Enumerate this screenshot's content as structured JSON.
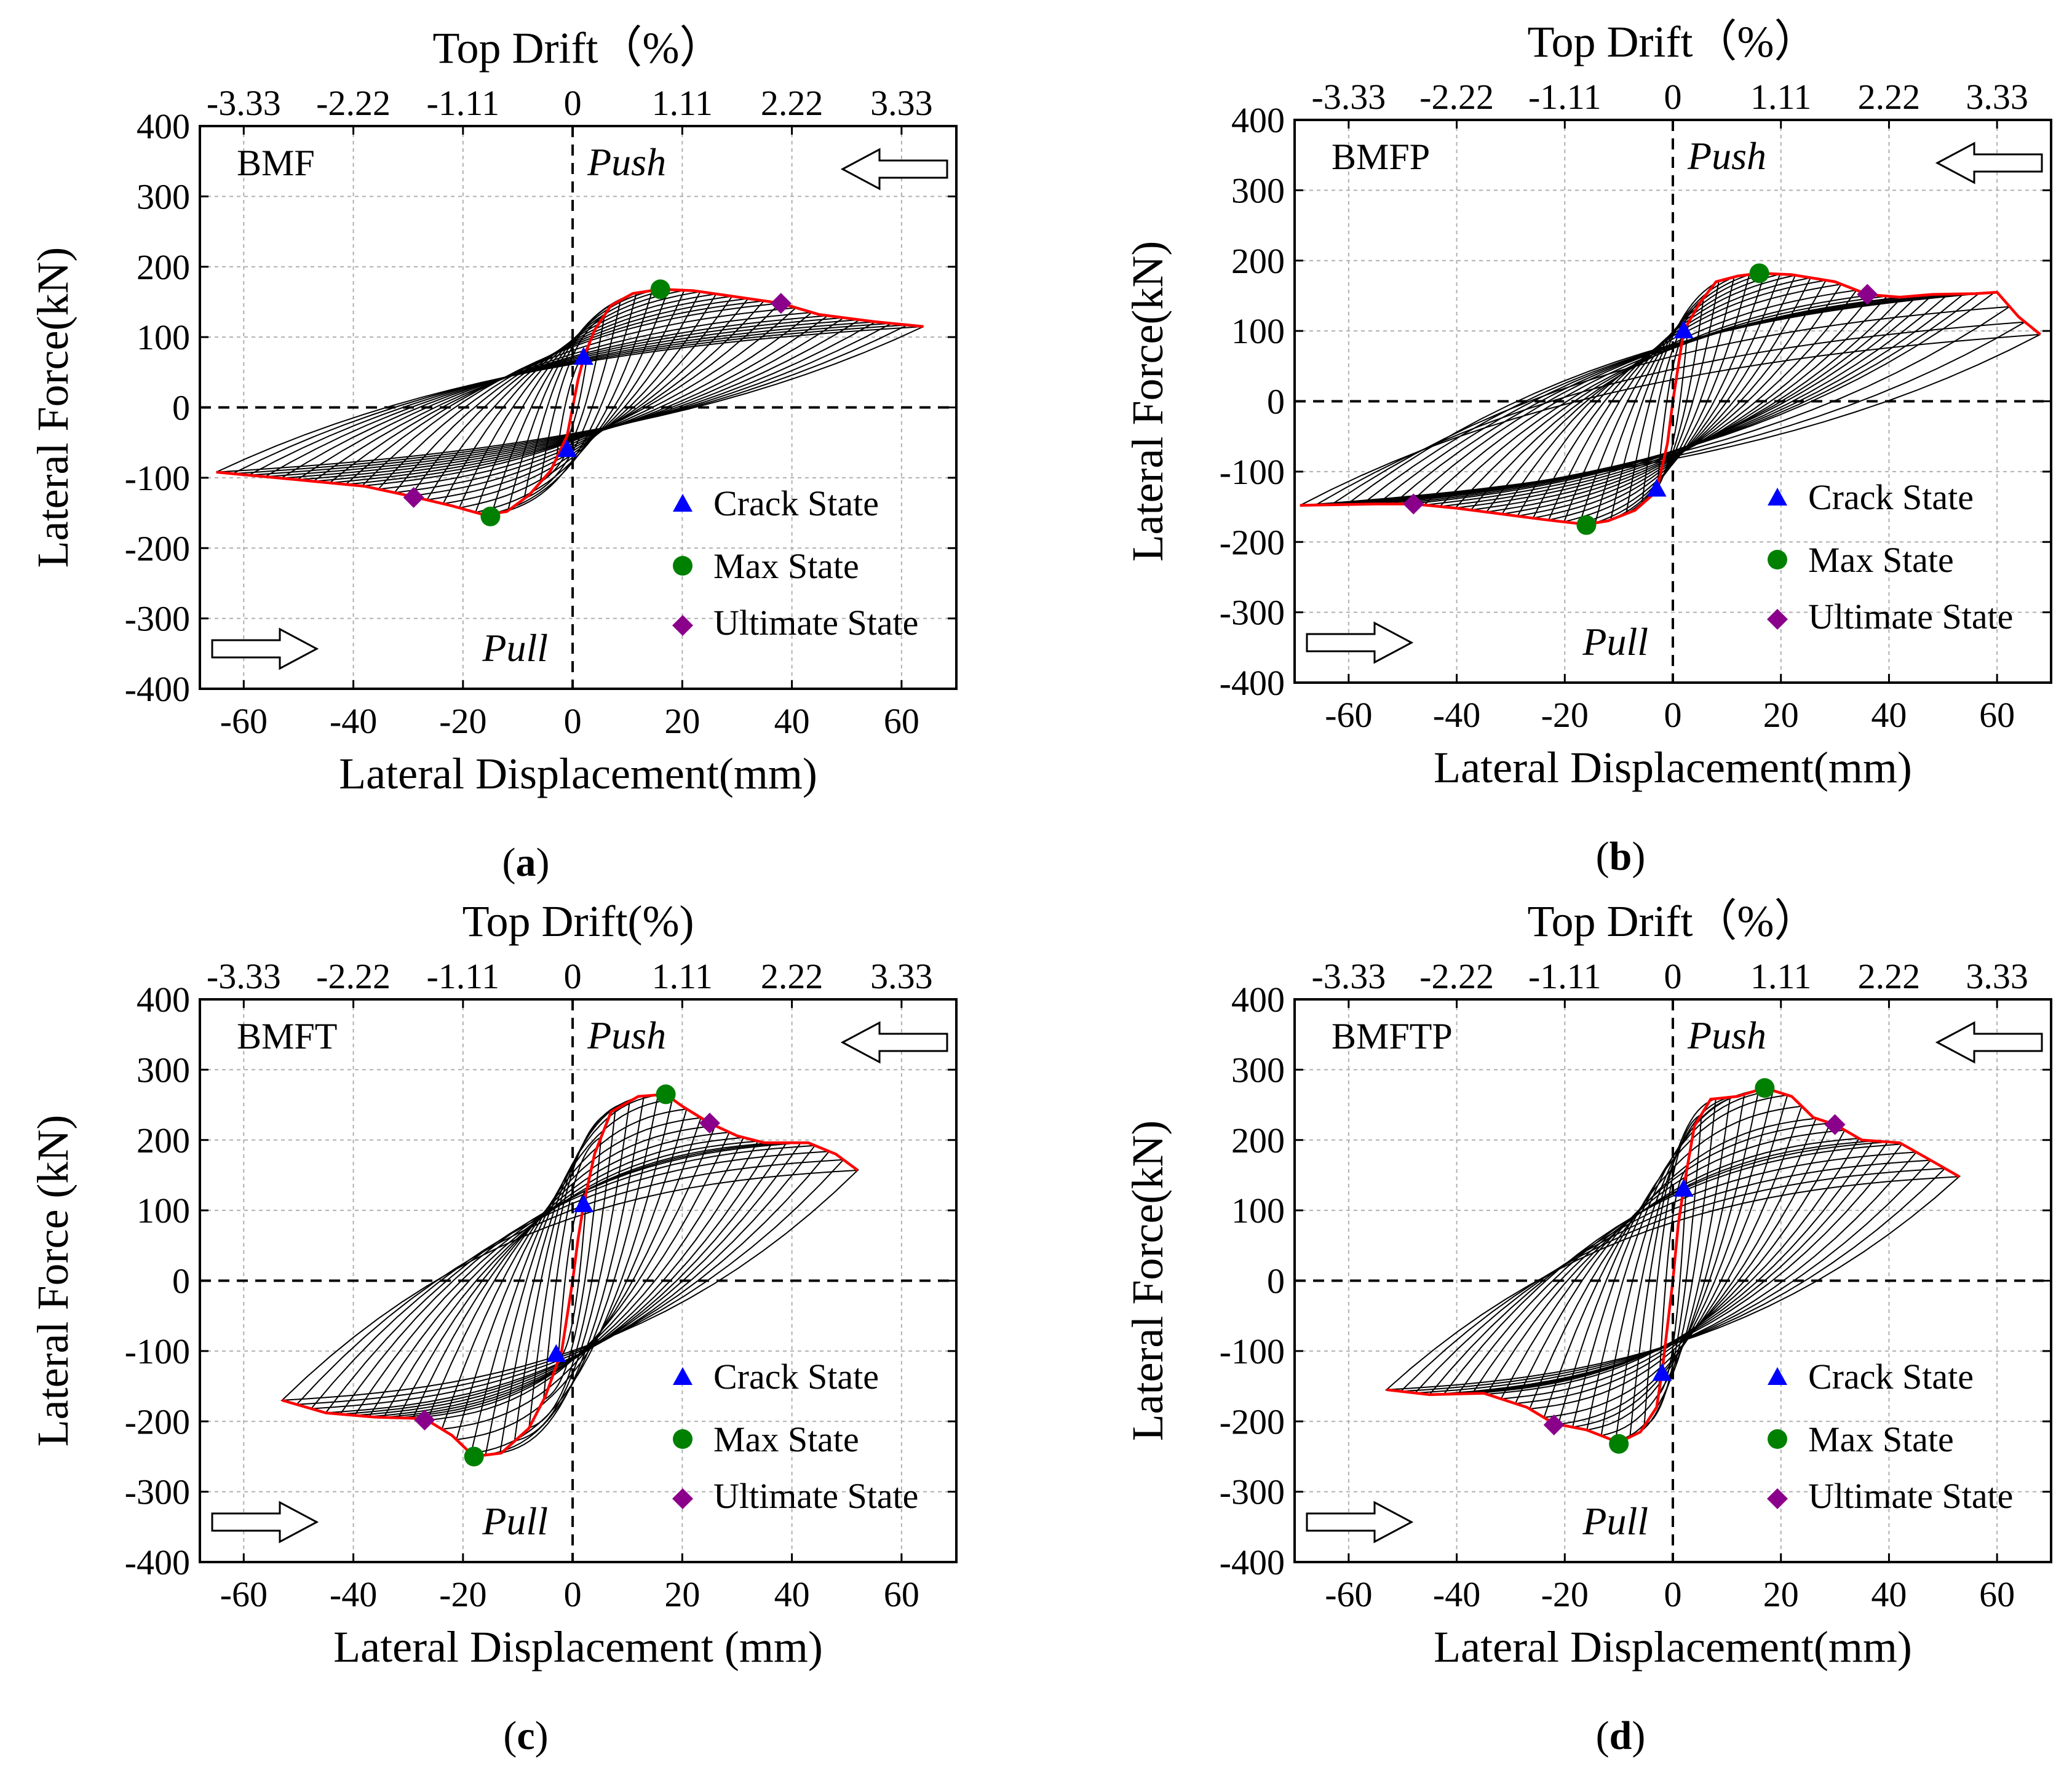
{
  "figure": {
    "captions": [
      "(a)",
      "(b)",
      "(c)",
      "(d)"
    ],
    "caption_letters": [
      "a",
      "b",
      "c",
      "d"
    ],
    "colors": {
      "envelope": "#ff0000",
      "loops": "#000000",
      "crack": "#0000ff",
      "max": "#008000",
      "ultimate": "#8b008b",
      "grid": "#b0b0b0"
    }
  },
  "chart_data": [
    {
      "type": "line",
      "specimen": "BMF",
      "title": "",
      "xlabel": "Lateral Displacement(mm)",
      "ylabel": "Lateral Force(kN)",
      "x2label": "Top Drift（%）",
      "xticks": [
        "-60",
        "-40",
        "-20",
        "0",
        "20",
        "40",
        "60"
      ],
      "yticks": [
        "-400",
        "-300",
        "-200",
        "-100",
        "0",
        "100",
        "200",
        "300",
        "400"
      ],
      "x2ticks": [
        "-3.33",
        "-2.22",
        "-1.11",
        "0",
        "1.11",
        "2.22",
        "3.33"
      ],
      "xlim": [
        -68,
        70
      ],
      "ylim": [
        -400,
        400
      ],
      "grid": true,
      "push_label": "Push",
      "pull_label": "Pull",
      "legend": [
        "Crack State",
        "Max State",
        "Ultimate State"
      ],
      "legend_position": "bottom-right",
      "envelope": [
        [
          -65,
          -92
        ],
        [
          -50,
          -103
        ],
        [
          -38,
          -112
        ],
        [
          -29,
          -127
        ],
        [
          -22,
          -140
        ],
        [
          -16,
          -153
        ],
        [
          -12,
          -148
        ],
        [
          -8,
          -125
        ],
        [
          -4,
          -90
        ],
        [
          -1,
          -40
        ],
        [
          0,
          0
        ],
        [
          1,
          40
        ],
        [
          2,
          70
        ],
        [
          4,
          110
        ],
        [
          7,
          145
        ],
        [
          11,
          162
        ],
        [
          16,
          168
        ],
        [
          22,
          166
        ],
        [
          30,
          157
        ],
        [
          38,
          148
        ],
        [
          45,
          132
        ],
        [
          55,
          122
        ],
        [
          64,
          115
        ]
      ],
      "crack": [
        [
          2,
          71
        ],
        [
          -1,
          -60
        ]
      ],
      "max": [
        [
          16,
          168
        ],
        [
          -15,
          -155
        ]
      ],
      "ultimate": [
        [
          38,
          148
        ],
        [
          -29,
          -128
        ]
      ],
      "loop_count": 22,
      "residual_force": 20
    },
    {
      "type": "line",
      "specimen": "BMFP",
      "title": "",
      "xlabel": "Lateral Displacement(mm)",
      "ylabel": "Lateral Force(kN)",
      "x2label": "Top Drift（%）",
      "xticks": [
        "-60",
        "-40",
        "-20",
        "0",
        "20",
        "40",
        "60"
      ],
      "yticks": [
        "-400",
        "-300",
        "-200",
        "-100",
        "0",
        "100",
        "200",
        "300",
        "400"
      ],
      "x2ticks": [
        "-3.33",
        "-2.22",
        "-1.11",
        "0",
        "1.11",
        "2.22",
        "3.33"
      ],
      "xlim": [
        -70,
        70
      ],
      "ylim": [
        -400,
        400
      ],
      "grid": true,
      "push_label": "Push",
      "pull_label": "Pull",
      "legend": [
        "Crack State",
        "Max State",
        "Ultimate State"
      ],
      "legend_position": "bottom-right",
      "envelope": [
        [
          -69,
          -148
        ],
        [
          -55,
          -146
        ],
        [
          -48,
          -146
        ],
        [
          -40,
          -152
        ],
        [
          -32,
          -160
        ],
        [
          -24,
          -168
        ],
        [
          -16,
          -175
        ],
        [
          -12,
          -170
        ],
        [
          -7,
          -155
        ],
        [
          -3,
          -128
        ],
        [
          -1,
          -60
        ],
        [
          0,
          0
        ],
        [
          1,
          50
        ],
        [
          2,
          100
        ],
        [
          5,
          140
        ],
        [
          8,
          170
        ],
        [
          12,
          178
        ],
        [
          16,
          182
        ],
        [
          22,
          180
        ],
        [
          30,
          170
        ],
        [
          36,
          152
        ],
        [
          42,
          148
        ],
        [
          48,
          152
        ],
        [
          56,
          153
        ],
        [
          60,
          155
        ],
        [
          64,
          120
        ],
        [
          68,
          95
        ]
      ],
      "crack": [
        [
          2,
          100
        ],
        [
          -3,
          -125
        ]
      ],
      "max": [
        [
          16,
          182
        ],
        [
          -16,
          -176
        ]
      ],
      "ultimate": [
        [
          36,
          152
        ],
        [
          -48,
          -146
        ]
      ],
      "loop_count": 24,
      "residual_force": 25
    },
    {
      "type": "line",
      "specimen": "BMFT",
      "title": "",
      "xlabel": "Lateral Displacement (mm)",
      "ylabel": "Lateral Force (kN)",
      "x2label": "Top Drift(%)",
      "xticks": [
        "-60",
        "-40",
        "-20",
        "0",
        "20",
        "40",
        "60"
      ],
      "yticks": [
        "-400",
        "-300",
        "-200",
        "-100",
        "0",
        "100",
        "200",
        "300",
        "400"
      ],
      "x2ticks": [
        "-3.33",
        "-2.22",
        "-1.11",
        "0",
        "1.11",
        "2.22",
        "3.33"
      ],
      "xlim": [
        -68,
        70
      ],
      "ylim": [
        -400,
        400
      ],
      "grid": true,
      "push_label": "Push",
      "pull_label": "Pull",
      "legend": [
        "Crack State",
        "Max State",
        "Ultimate State"
      ],
      "legend_position": "bottom-right",
      "envelope": [
        [
          -53,
          -170
        ],
        [
          -45,
          -188
        ],
        [
          -36,
          -194
        ],
        [
          -27,
          -196
        ],
        [
          -22,
          -220
        ],
        [
          -18,
          -250
        ],
        [
          -13,
          -245
        ],
        [
          -8,
          -210
        ],
        [
          -5,
          -165
        ],
        [
          -2,
          -100
        ],
        [
          0,
          0
        ],
        [
          1,
          60
        ],
        [
          2,
          108
        ],
        [
          4,
          180
        ],
        [
          7,
          240
        ],
        [
          12,
          262
        ],
        [
          17,
          265
        ],
        [
          20,
          248
        ],
        [
          25,
          224
        ],
        [
          30,
          206
        ],
        [
          35,
          196
        ],
        [
          43,
          196
        ],
        [
          48,
          180
        ],
        [
          52,
          157
        ]
      ],
      "crack": [
        [
          2,
          108
        ],
        [
          -3,
          -105
        ]
      ],
      "max": [
        [
          17,
          265
        ],
        [
          -18,
          -250
        ]
      ],
      "ultimate": [
        [
          25,
          224
        ],
        [
          -27,
          -198
        ]
      ],
      "loop_count": 20,
      "residual_force": 15
    },
    {
      "type": "line",
      "specimen": "BMFTP",
      "title": "",
      "xlabel": "Lateral Displacement(mm)",
      "ylabel": "Lateral Force(kN)",
      "x2label": "Top Drift（%）",
      "xticks": [
        "-60",
        "-40",
        "-20",
        "0",
        "20",
        "40",
        "60"
      ],
      "yticks": [
        "-400",
        "-300",
        "-200",
        "-100",
        "0",
        "100",
        "200",
        "300",
        "400"
      ],
      "x2ticks": [
        "-3.33",
        "-2.22",
        "-1.11",
        "0",
        "1.11",
        "2.22",
        "3.33"
      ],
      "xlim": [
        -70,
        70
      ],
      "ylim": [
        -400,
        400
      ],
      "grid": true,
      "push_label": "Push",
      "pull_label": "Pull",
      "legend": [
        "Crack State",
        "Max State",
        "Ultimate State"
      ],
      "legend_position": "bottom-right",
      "envelope": [
        [
          -53,
          -155
        ],
        [
          -45,
          -162
        ],
        [
          -35,
          -160
        ],
        [
          -27,
          -180
        ],
        [
          -22,
          -203
        ],
        [
          -16,
          -212
        ],
        [
          -10,
          -230
        ],
        [
          -6,
          -215
        ],
        [
          -3,
          -180
        ],
        [
          -2,
          -130
        ],
        [
          0,
          0
        ],
        [
          1,
          80
        ],
        [
          2,
          132
        ],
        [
          4,
          220
        ],
        [
          7,
          258
        ],
        [
          12,
          262
        ],
        [
          17,
          274
        ],
        [
          22,
          262
        ],
        [
          26,
          232
        ],
        [
          30,
          222
        ],
        [
          35,
          200
        ],
        [
          42,
          196
        ],
        [
          48,
          170
        ],
        [
          53,
          148
        ]
      ],
      "crack": [
        [
          2,
          130
        ],
        [
          -2,
          -132
        ]
      ],
      "max": [
        [
          17,
          274
        ],
        [
          -10,
          -232
        ]
      ],
      "ultimate": [
        [
          30,
          222
        ],
        [
          -22,
          -205
        ]
      ],
      "loop_count": 20,
      "residual_force": 15
    }
  ]
}
